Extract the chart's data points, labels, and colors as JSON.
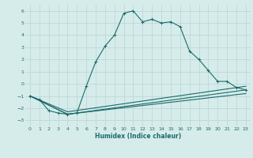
{
  "xlabel": "Humidex (Indice chaleur)",
  "background_color": "#d6ecea",
  "grid_color": "#b8d4d4",
  "line_color": "#1a6b6b",
  "xlim": [
    -0.5,
    23.5
  ],
  "ylim": [
    -3.5,
    6.5
  ],
  "xticks": [
    0,
    1,
    2,
    3,
    4,
    5,
    6,
    7,
    8,
    9,
    10,
    11,
    12,
    13,
    14,
    15,
    16,
    17,
    18,
    19,
    20,
    21,
    22,
    23
  ],
  "yticks": [
    -3,
    -2,
    -1,
    0,
    1,
    2,
    3,
    4,
    5,
    6
  ],
  "line1_x": [
    0,
    1,
    2,
    3,
    4,
    5,
    6,
    7,
    8,
    9,
    10,
    11,
    12,
    13,
    14,
    15,
    16,
    17,
    18,
    19,
    20,
    21,
    22,
    23
  ],
  "line1_y": [
    -1.0,
    -1.3,
    -2.2,
    -2.4,
    -2.5,
    -2.4,
    -0.2,
    1.8,
    3.1,
    4.0,
    5.8,
    6.0,
    5.1,
    5.3,
    5.0,
    5.1,
    4.7,
    2.7,
    2.0,
    1.1,
    0.2,
    0.2,
    -0.3,
    -0.5
  ],
  "line2_x": [
    0,
    4,
    23
  ],
  "line2_y": [
    -1.0,
    -2.5,
    -0.5
  ],
  "line3_x": [
    0,
    4,
    23
  ],
  "line3_y": [
    -1.0,
    -2.5,
    -0.8
  ],
  "line4_x": [
    0,
    4,
    23
  ],
  "line4_y": [
    -1.0,
    -2.3,
    -0.2
  ]
}
